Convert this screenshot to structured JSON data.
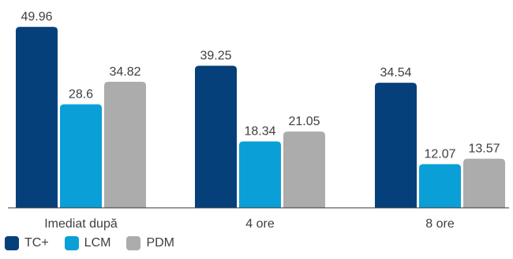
{
  "chart_data": {
    "type": "bar",
    "categories": [
      "Imediat după",
      "4 ore",
      "8 ore"
    ],
    "series": [
      {
        "name": "TC+",
        "values": [
          49.96,
          39.25,
          34.54
        ],
        "color": "#06407b"
      },
      {
        "name": "LCM",
        "values": [
          28.6,
          18.34,
          12.07
        ],
        "color": "#0b9fd8"
      },
      {
        "name": "PDM",
        "values": [
          34.82,
          21.05,
          13.57
        ],
        "color": "#acacac"
      }
    ],
    "title": "",
    "xlabel": "",
    "ylabel": "",
    "ylim": [
      0,
      50
    ],
    "legend_position": "bottom-left",
    "grid": false
  }
}
